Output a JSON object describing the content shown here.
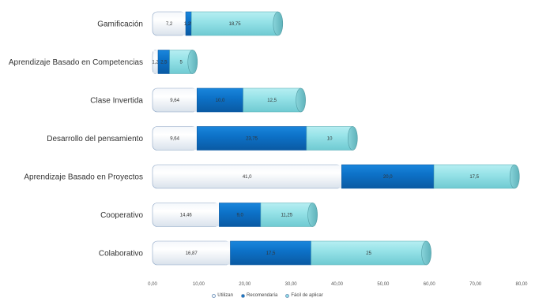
{
  "chart_data": {
    "type": "bar",
    "orientation": "horizontal",
    "stacked": true,
    "categories": [
      "Gamificación",
      "Aprendizaje Basado en Competencias",
      "Clase Invertida",
      "Desarrollo del pensamiento",
      "Aprendizaje Basado en Proyectos",
      "Cooperativo",
      "Colaborativo"
    ],
    "series": [
      {
        "name": "Utilizan",
        "color": "#ffffff",
        "values": [
          7.2,
          1.2,
          9.64,
          9.64,
          41.0,
          14.46,
          16.87
        ],
        "labels": [
          "7,2",
          "1,2",
          "9,64",
          "9,64",
          "41,0",
          "14,46",
          "16,87"
        ]
      },
      {
        "name": "Recomendaría",
        "color": "#0a6fc4",
        "values": [
          1.25,
          2.5,
          10.0,
          23.75,
          20.0,
          9.0,
          17.5
        ],
        "labels": [
          "1,25",
          "2,5",
          "10,0",
          "23,75",
          "20,0",
          "9,0",
          "17,5"
        ]
      },
      {
        "name": "Fácil de aplicar",
        "color": "#8fe0e6",
        "values": [
          18.75,
          5,
          12.5,
          10,
          17.5,
          11.25,
          25
        ],
        "labels": [
          "18,75",
          "5",
          "12,5",
          "10",
          "17,5",
          "11,25",
          "25"
        ]
      }
    ],
    "xlim": [
      0,
      80
    ],
    "xticks": [
      "0,00",
      "10,00",
      "20,00",
      "30,00",
      "40,00",
      "50,00",
      "60,00",
      "70,00",
      "80,00"
    ],
    "legend_position": "bottom",
    "grid": false
  }
}
